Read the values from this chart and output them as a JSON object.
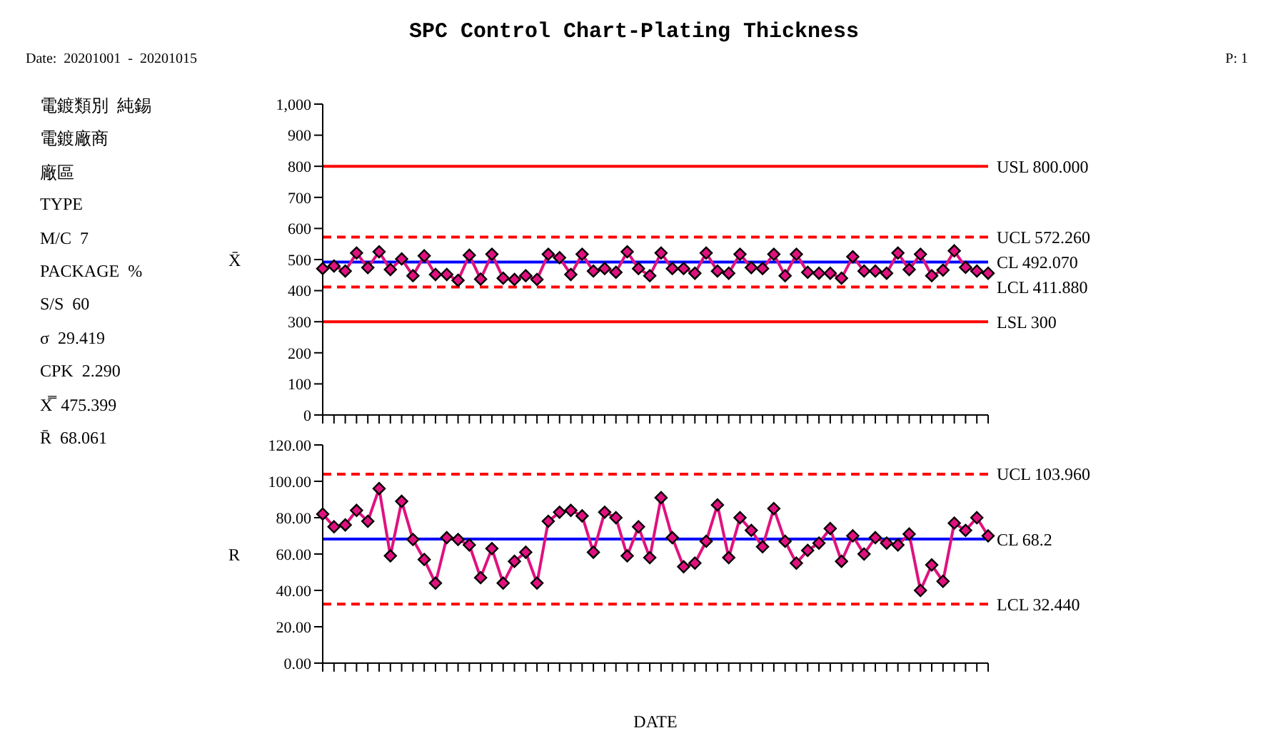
{
  "chart_data": [
    {
      "type": "line",
      "title": "SPC Control Chart-Plating Thickness",
      "subtitle": "Date:  20201001  -  20201015",
      "annotations": [
        "P: 1"
      ],
      "ylabel": "X̄",
      "categories": [
        null,
        null,
        null,
        null,
        null,
        null,
        null,
        null,
        null,
        null,
        null,
        null,
        null,
        null,
        null,
        null,
        null,
        null,
        null,
        null,
        null,
        null,
        null,
        null,
        null,
        null,
        null,
        null,
        null,
        null,
        null,
        null,
        null,
        null,
        null,
        null,
        null,
        null,
        null,
        null,
        null,
        null,
        null,
        null,
        null,
        null,
        null,
        null,
        null,
        null,
        null,
        null,
        null,
        null,
        null,
        null,
        null,
        null,
        null,
        null
      ],
      "series": [
        {
          "color": "#e0117f",
          "values": [
            471,
            479,
            463,
            521,
            474,
            525,
            468,
            502,
            448,
            512,
            452,
            452,
            433,
            514,
            437,
            517,
            440,
            436,
            448,
            436,
            517,
            506,
            452,
            517,
            463,
            471,
            459,
            525,
            471,
            448,
            521,
            471,
            471,
            456,
            521,
            463,
            456,
            517,
            474,
            471,
            517,
            448,
            517,
            459,
            456,
            456,
            440,
            509,
            463,
            463,
            456,
            521,
            468,
            517,
            448,
            466,
            528,
            475,
            463,
            456
          ]
        }
      ],
      "marker": "diamond",
      "line_style": "solid",
      "ylim": [
        0,
        1000
      ],
      "yticks": [
        0,
        100,
        200,
        300,
        400,
        500,
        600,
        700,
        800,
        900,
        {
          "value": 1000,
          "label": "1,000"
        }
      ],
      "ref_lines": [
        {
          "axis": "y",
          "value": 800,
          "label": "USL  800.000",
          "color": "#ff0000",
          "line_style": "solid"
        },
        {
          "axis": "y",
          "value": 572.26,
          "label": "UCL  572.260",
          "color": "#ff0000",
          "line_style": "dashed"
        },
        {
          "axis": "y",
          "value": 492.07,
          "label": "CL  492.070",
          "color": "#0000ff",
          "line_style": "solid"
        },
        {
          "axis": "y",
          "value": 411.88,
          "label": "LCL  411.880",
          "color": "#ff0000",
          "line_style": "dashed"
        },
        {
          "axis": "y",
          "value": 300,
          "label": "LSL  300",
          "color": "#ff0000",
          "line_style": "solid"
        }
      ]
    },
    {
      "type": "line",
      "xlabel": "DATE",
      "ylabel": "R",
      "categories": [
        null,
        null,
        null,
        null,
        null,
        null,
        null,
        null,
        null,
        null,
        null,
        null,
        null,
        null,
        null,
        null,
        null,
        null,
        null,
        null,
        null,
        null,
        null,
        null,
        null,
        null,
        null,
        null,
        null,
        null,
        null,
        null,
        null,
        null,
        null,
        null,
        null,
        null,
        null,
        null,
        null,
        null,
        null,
        null,
        null,
        null,
        null,
        null,
        null,
        null,
        null,
        null,
        null,
        null,
        null,
        null,
        null,
        null,
        null,
        null
      ],
      "series": [
        {
          "color": "#e0117f",
          "values": [
            82,
            75,
            76,
            84,
            78,
            96,
            59,
            89,
            68,
            57,
            44,
            69,
            68,
            65,
            47,
            63,
            44,
            56,
            61,
            44,
            78,
            83,
            84,
            81,
            61,
            83,
            80,
            59,
            75,
            58,
            91,
            69,
            53,
            55,
            67,
            87,
            58,
            80,
            73,
            64,
            85,
            67,
            55,
            62,
            66,
            74,
            56,
            70,
            60,
            69,
            66,
            65,
            71,
            40,
            54,
            45,
            77,
            73,
            80,
            70
          ]
        }
      ],
      "marker": "diamond",
      "line_style": "solid",
      "ylim": [
        0,
        120
      ],
      "yticks": [
        {
          "value": 0,
          "label": "0.00"
        },
        {
          "value": 20,
          "label": "20.00"
        },
        {
          "value": 40,
          "label": "40.00"
        },
        {
          "value": 60,
          "label": "60.00"
        },
        {
          "value": 80,
          "label": "80.00"
        },
        {
          "value": 100,
          "label": "100.00"
        },
        {
          "value": 120,
          "label": "120.00"
        }
      ],
      "ref_lines": [
        {
          "axis": "y",
          "value": 103.96,
          "label": "UCL  103.960",
          "color": "#ff0000",
          "line_style": "dashed"
        },
        {
          "axis": "y",
          "value": 68.2,
          "label": "CL  68.2",
          "color": "#0000ff",
          "line_style": "solid"
        },
        {
          "axis": "y",
          "value": 32.44,
          "label": "LCL  32.440",
          "color": "#ff0000",
          "line_style": "dashed"
        }
      ]
    },
    {
      "type": "other",
      "annotations": [
        "電鍍類別  純錫",
        "電鍍廠商",
        "廠區",
        "TYPE",
        "M/C  7",
        "PACKAGE  %",
        "S/S  60",
        "σ  29.419",
        "CPK  2.290",
        "X̿  475.399",
        "R̄  68.061"
      ]
    }
  ]
}
